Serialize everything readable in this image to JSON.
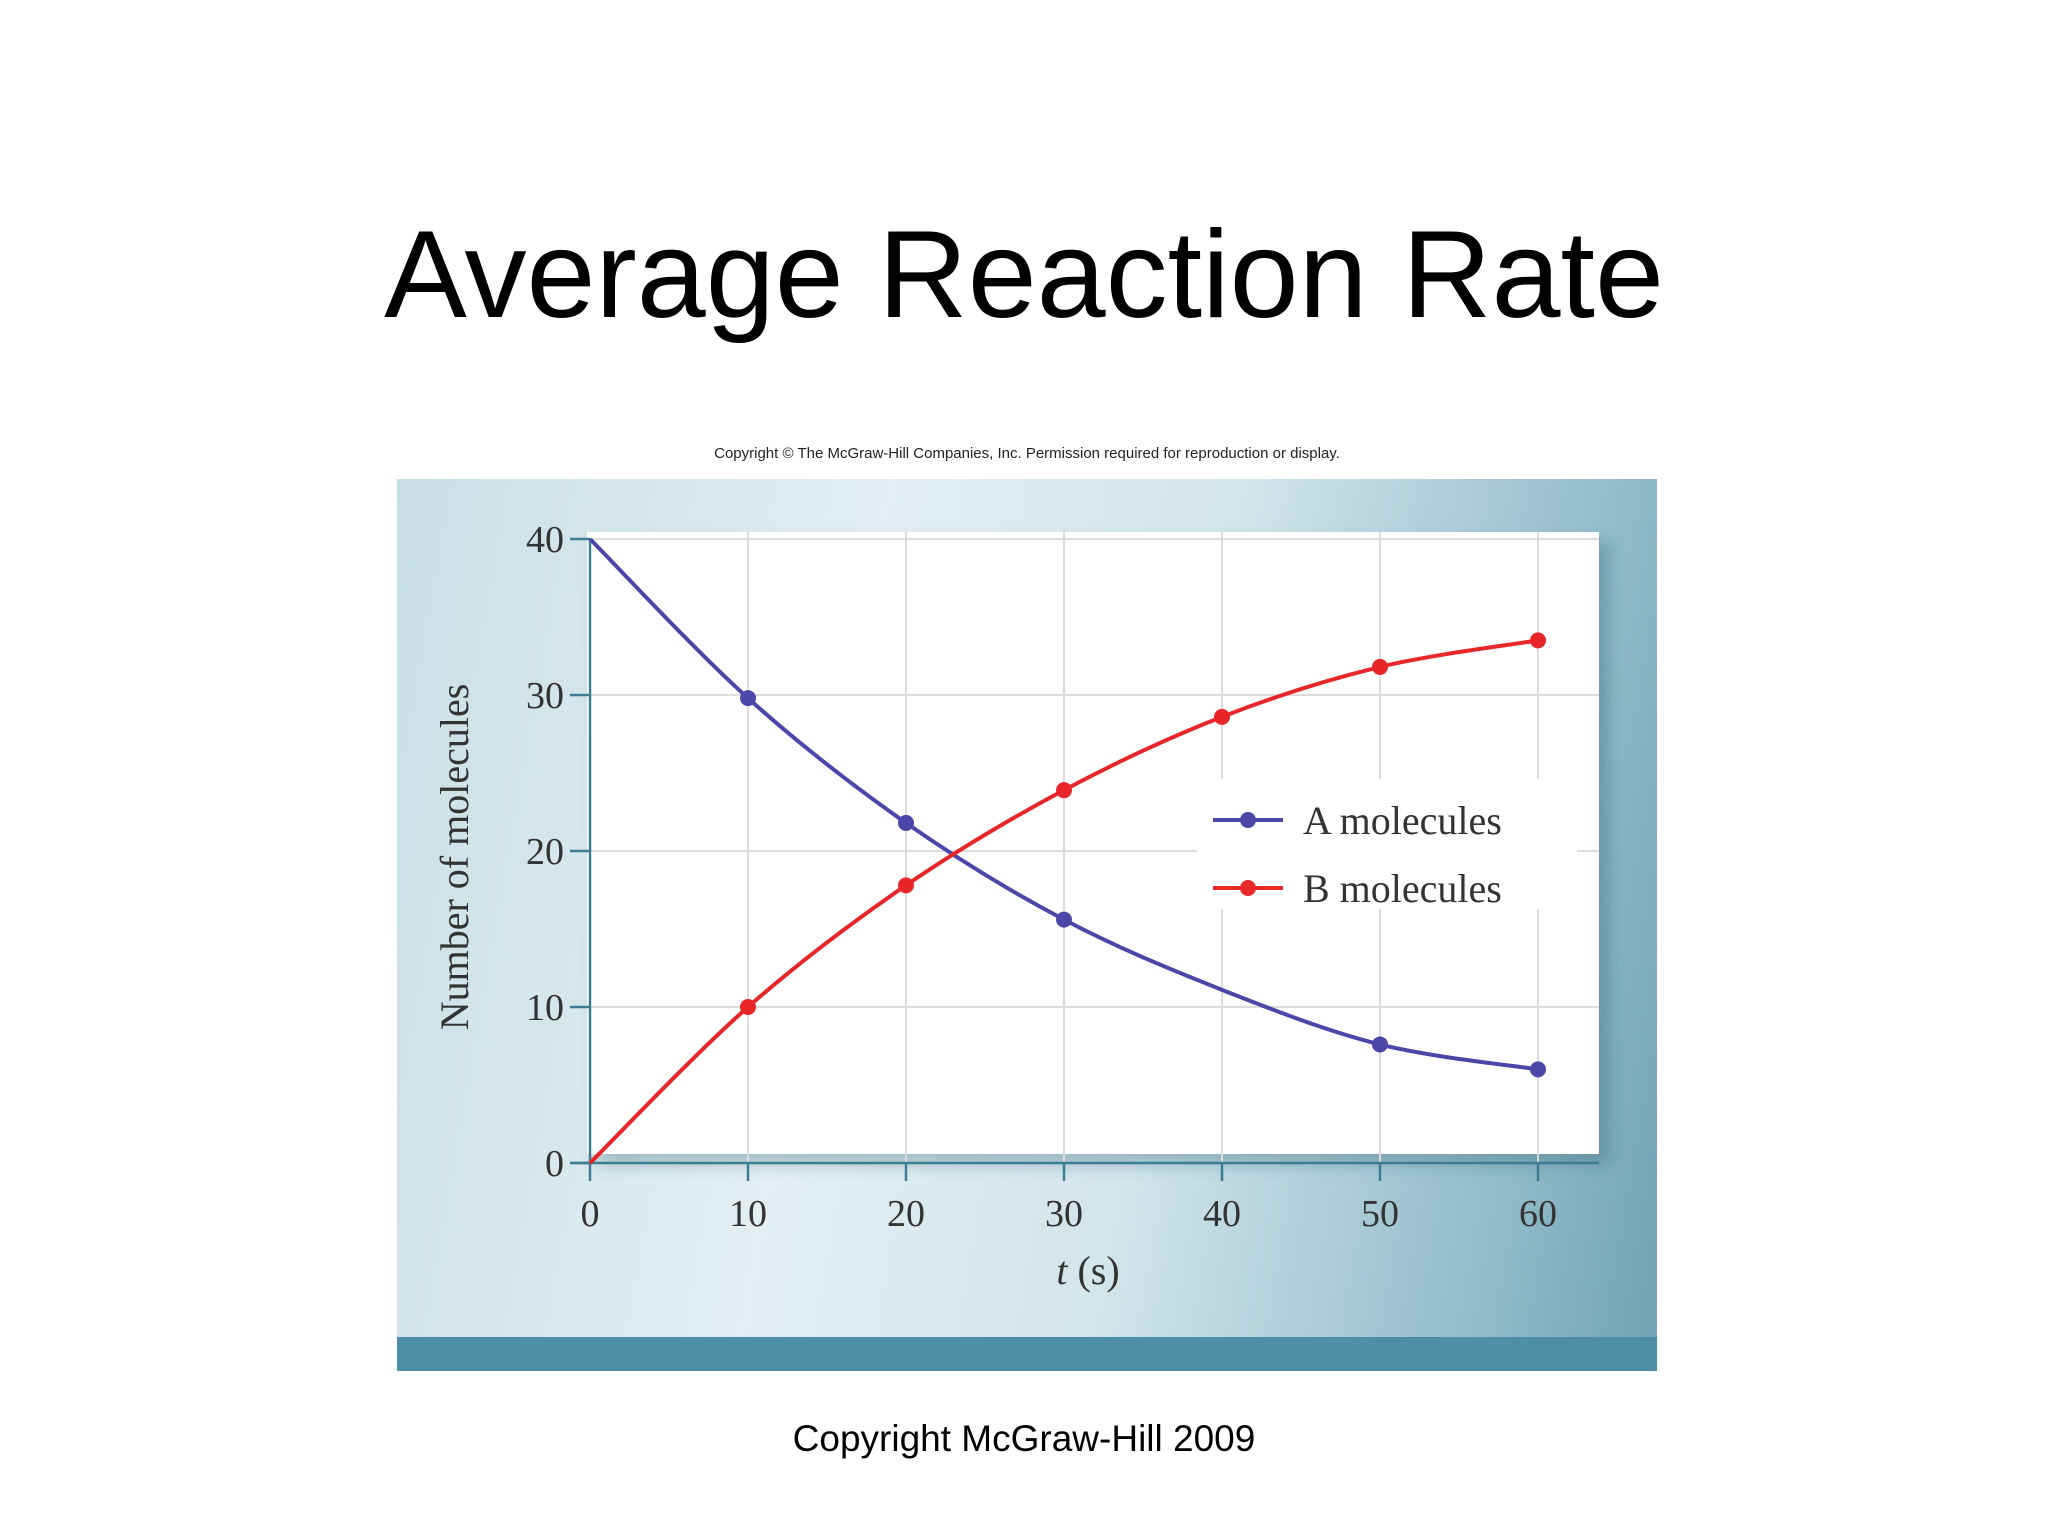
{
  "slide": {
    "title": "Average Reaction Rate",
    "figure_copyright": "Copyright © The McGraw-Hill Companies, Inc. Permission required for reproduction or display.",
    "footer": "Copyright McGraw-Hill 2009"
  },
  "chart_data": {
    "type": "line",
    "title": "",
    "xlabel": "t (s)",
    "xlabel_italic_part": "t",
    "xlabel_rest": " (s)",
    "ylabel": "Number of molecules",
    "x": [
      0,
      10,
      20,
      30,
      40,
      50,
      60
    ],
    "xticks": [
      "0",
      "10",
      "20",
      "30",
      "40",
      "50",
      "60"
    ],
    "yticks": [
      "0",
      "10",
      "20",
      "30",
      "40"
    ],
    "xlim": [
      0,
      65
    ],
    "ylim": [
      0,
      40
    ],
    "grid": true,
    "legend_position": "right-middle",
    "series": [
      {
        "name": "A molecules",
        "color": "#4b47a8",
        "values": [
          40,
          29.8,
          21.8,
          15.6,
          11.1,
          7.6,
          6.0
        ],
        "markers_at": [
          10,
          20,
          30,
          50,
          60
        ]
      },
      {
        "name": "B molecules",
        "color": "#e8262a",
        "values": [
          0,
          10,
          17.8,
          23.9,
          28.6,
          31.8,
          33.5
        ],
        "markers_at": [
          10,
          20,
          30,
          40,
          50,
          60
        ]
      }
    ]
  }
}
